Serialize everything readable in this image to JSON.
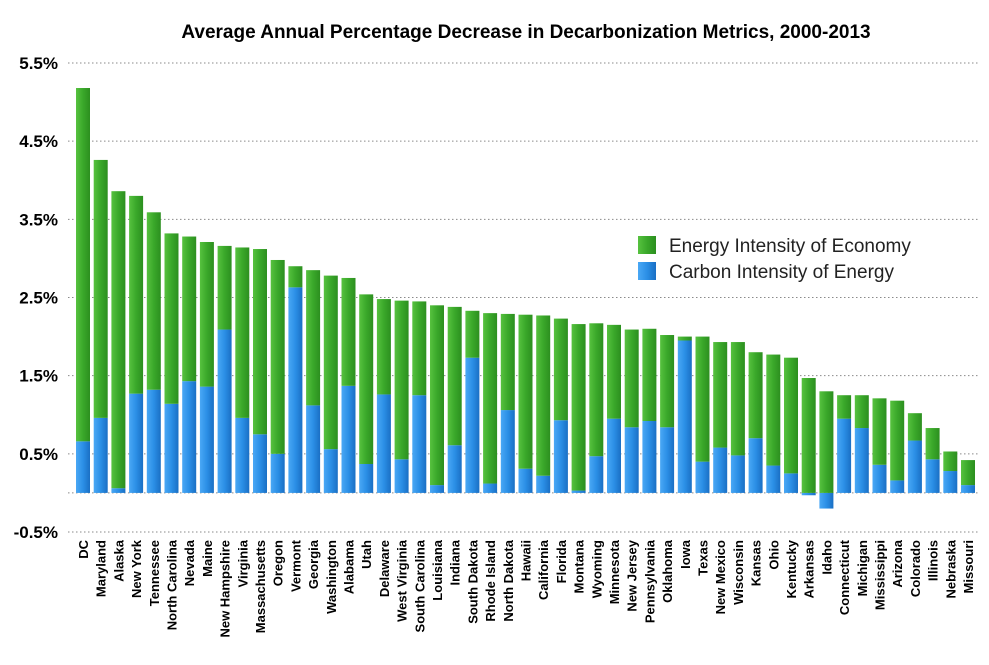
{
  "chart_data": {
    "type": "bar",
    "stacked": true,
    "title": "Average Annual Percentage Decrease in Decarbonization Metrics, 2000-2013",
    "xlabel": "",
    "ylabel": "",
    "ylim": [
      -0.5,
      5.5
    ],
    "yticks": [
      -0.5,
      0.5,
      1.5,
      2.5,
      3.5,
      4.5,
      5.5
    ],
    "ytick_labels": [
      "-0.5%",
      "0.5%",
      "1.5%",
      "2.5%",
      "3.5%",
      "4.5%",
      "5.5%"
    ],
    "grid": true,
    "legend_position": "right",
    "categories": [
      "DC",
      "Maryland",
      "Alaska",
      "New York",
      "Tennessee",
      "North Carolina",
      "Nevada",
      "Maine",
      "New Hampshire",
      "Virginia",
      "Massachusetts",
      "Oregon",
      "Vermont",
      "Georgia",
      "Washington",
      "Alabama",
      "Utah",
      "Delaware",
      "West Virginia",
      "South Carolina",
      "Louisiana",
      "Indiana",
      "South Dakota",
      "Rhode Island",
      "North Dakota",
      "Hawaii",
      "California",
      "Florida",
      "Montana",
      "Wyoming",
      "Minnesota",
      "New Jersey",
      "Pennsylvania",
      "Oklahoma",
      "Iowa",
      "Texas",
      "New Mexico",
      "Wisconsin",
      "Kansas",
      "Ohio",
      "Kentucky",
      "Arkansas",
      "Idaho",
      "Connecticut",
      "Michigan",
      "Mississippi",
      "Arizona",
      "Colorado",
      "Illinois",
      "Nebraska",
      "Missouri"
    ],
    "series": [
      {
        "name": "Energy Intensity of Economy",
        "color": "#3aa82a",
        "values": [
          4.52,
          3.3,
          3.8,
          2.53,
          2.27,
          2.18,
          1.85,
          1.85,
          1.07,
          2.18,
          2.37,
          2.48,
          0.27,
          1.73,
          2.22,
          1.38,
          2.17,
          1.22,
          2.03,
          1.2,
          2.3,
          1.77,
          0.6,
          2.18,
          1.23,
          1.97,
          2.05,
          1.3,
          2.13,
          1.7,
          1.2,
          1.25,
          1.18,
          1.18,
          0.05,
          1.6,
          1.35,
          1.45,
          1.1,
          1.42,
          1.48,
          1.47,
          1.3,
          0.3,
          0.42,
          0.85,
          1.02,
          0.35,
          0.4,
          0.25,
          0.32
        ]
      },
      {
        "name": "Carbon Intensity of Energy",
        "color": "#2b8fe6",
        "values": [
          0.66,
          0.96,
          0.06,
          1.27,
          1.32,
          1.14,
          1.43,
          1.36,
          2.09,
          0.96,
          0.75,
          0.5,
          2.63,
          1.12,
          0.56,
          1.37,
          0.37,
          1.26,
          0.43,
          1.25,
          0.1,
          0.61,
          1.73,
          0.12,
          1.06,
          0.31,
          0.22,
          0.93,
          0.03,
          0.47,
          0.95,
          0.84,
          0.92,
          0.84,
          1.95,
          0.4,
          0.58,
          0.48,
          0.7,
          0.35,
          0.25,
          -0.03,
          -0.2,
          0.95,
          0.83,
          0.36,
          0.16,
          0.67,
          0.43,
          0.28,
          0.1
        ]
      }
    ]
  }
}
